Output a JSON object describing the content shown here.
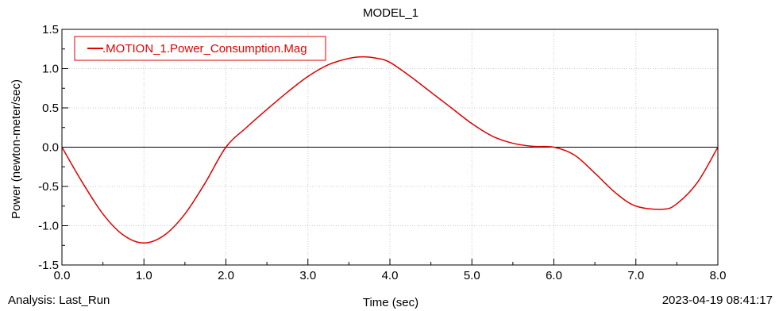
{
  "footer": {
    "analysis": "Analysis:  Last_Run",
    "timestamp": "2023-04-19 08:41:17"
  },
  "chart_data": {
    "type": "line",
    "title": "MODEL_1",
    "xlabel": "Time (sec)",
    "ylabel": "Power (newton-meter/sec)",
    "xlim": [
      0,
      8
    ],
    "ylim": [
      -1.5,
      1.5
    ],
    "xticks": [
      "0.0",
      "1.0",
      "2.0",
      "3.0",
      "4.0",
      "5.0",
      "6.0",
      "7.0",
      "8.0"
    ],
    "yticks": [
      "1.5",
      "1.0",
      "0.5",
      "0.0",
      "-0.5",
      "-1.0",
      "-1.5"
    ],
    "grid": true,
    "legend_position": "top-left",
    "zero_line": true,
    "series": [
      {
        "name": ".MOTION_1.Power_Consumption.Mag",
        "color": "#e00000",
        "x": [
          0,
          0.25,
          0.5,
          0.75,
          1.0,
          1.25,
          1.5,
          1.75,
          2.0,
          2.25,
          2.5,
          2.75,
          3.0,
          3.25,
          3.5,
          3.67,
          3.85,
          4.0,
          4.25,
          4.5,
          4.75,
          5.0,
          5.25,
          5.5,
          5.75,
          6.0,
          6.25,
          6.5,
          6.75,
          7.0,
          7.33,
          7.5,
          7.75,
          8.0
        ],
        "y": [
          0,
          -0.45,
          -0.85,
          -1.12,
          -1.22,
          -1.12,
          -0.85,
          -0.45,
          0,
          0.25,
          0.48,
          0.7,
          0.9,
          1.05,
          1.13,
          1.15,
          1.13,
          1.08,
          0.9,
          0.7,
          0.5,
          0.3,
          0.14,
          0.05,
          0.01,
          0,
          -0.1,
          -0.33,
          -0.58,
          -0.75,
          -0.79,
          -0.72,
          -0.45,
          0
        ]
      }
    ]
  }
}
